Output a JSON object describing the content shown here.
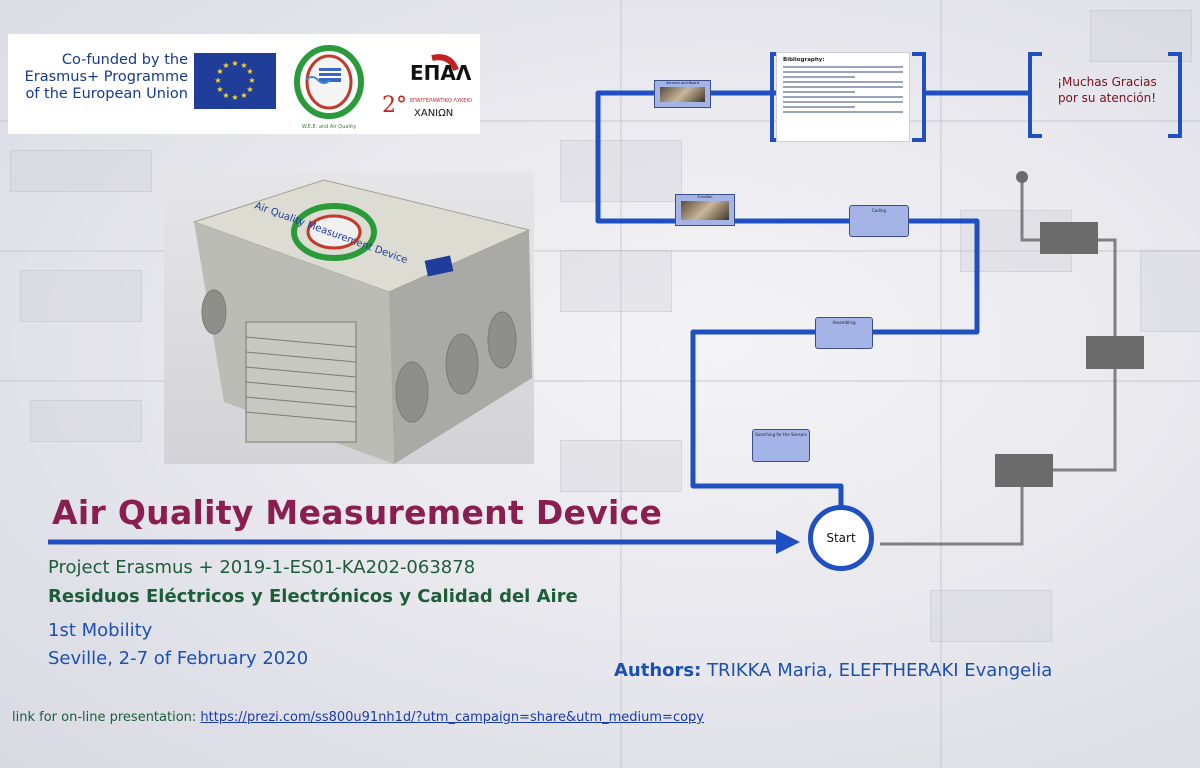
{
  "logos": {
    "cofund_text": "Co-funded by the Erasmus+ Programme of the European Union",
    "cofund_lines": [
      "Co-funded by the",
      "Erasmus+ Programme",
      "of the European Union"
    ],
    "wee_caption": "W.E.E. and Air Quality",
    "epal_top": "ΕΠΑΛ",
    "epal_number": "2°",
    "epal_line1": "ΕΠΑΓΓΕΛΜΑΤΙΚΟ ΛΥΚΕΙΟ",
    "epal_line2": "ΧΑΝΙΩΝ"
  },
  "device": {
    "label": "Air Quality Measurement Device"
  },
  "path_nodes": [
    {
      "label": "Sensors and Board"
    },
    {
      "label": "Function"
    },
    {
      "label": "Coding"
    },
    {
      "label": "Assembling"
    },
    {
      "label": "Searching for the Sensors"
    }
  ],
  "bibliography": {
    "title": "Bibliography:"
  },
  "thanks": {
    "text": "¡Muchas Gracias por su atención!"
  },
  "start": {
    "label": "Start"
  },
  "info": {
    "title": "Air Quality Measurement Device",
    "project": "Project Erasmus +  2019-1-ES01-KA202-063878",
    "subtitle": "Residuos Eléctricos y Electrónicos y Calidad del Aire",
    "mobility": "1st Mobility",
    "dates": "Seville, 2-7 of February 2020",
    "authors_label": "Authors:",
    "authors_names": "TRIKKA Maria, ELEFTHERAKI Evangelia",
    "link_label": "link for on-line presentation:",
    "link_url": "https://prezi.com/ss800u91nh1d/?utm_campaign=share&utm_medium=copy"
  },
  "colors": {
    "path_blue": "#1f4fc0",
    "title_maroon": "#8a1e50",
    "text_green": "#1d5d3a",
    "text_blue": "#1b50b0",
    "gray_path": "#6b6b6b"
  }
}
